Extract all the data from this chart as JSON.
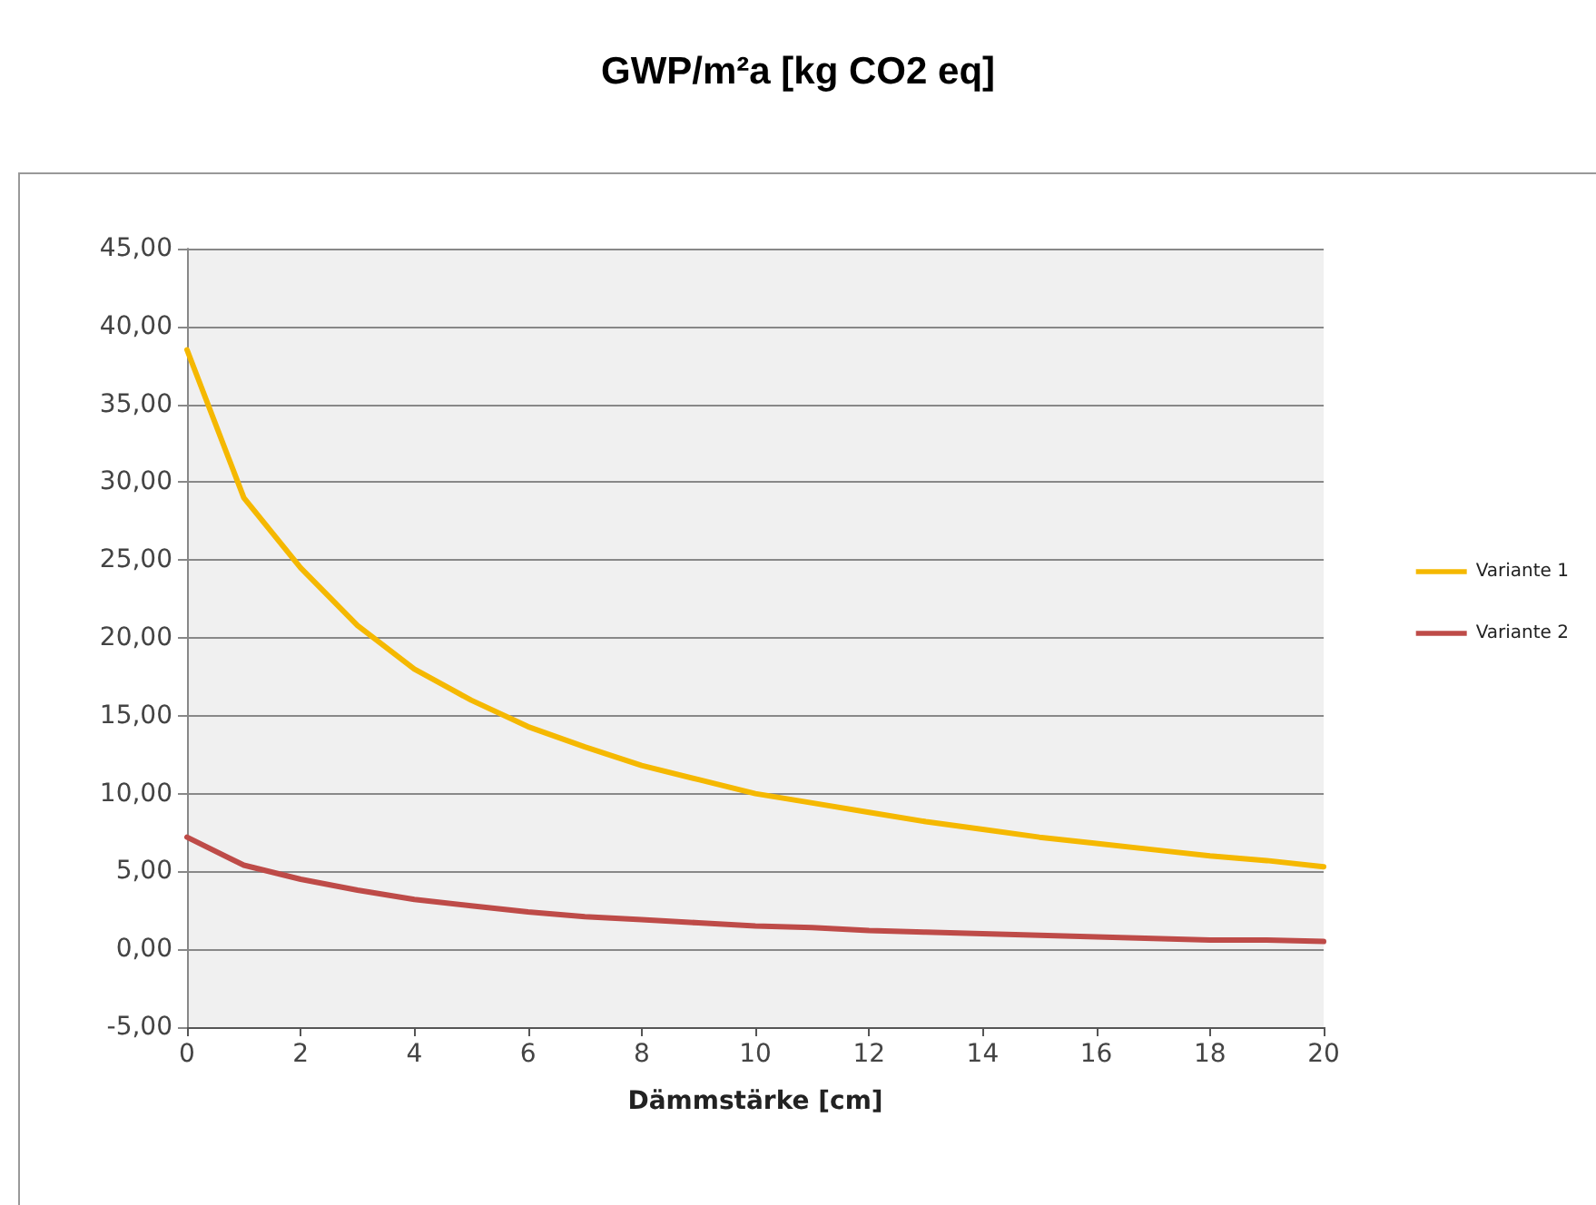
{
  "chart_data": {
    "type": "line",
    "title": "GWP/m²a [kg CO2 eq]",
    "xlabel": "Dämmstärke [cm]",
    "x": [
      0,
      1,
      2,
      3,
      4,
      5,
      6,
      7,
      8,
      9,
      10,
      11,
      12,
      13,
      14,
      15,
      16,
      17,
      18,
      19,
      20
    ],
    "series": [
      {
        "name": "Variante 1",
        "color": "#f5b800",
        "values": [
          38.5,
          29,
          24.5,
          20.8,
          18,
          16,
          14.3,
          13,
          11.8,
          10.9,
          10,
          9.4,
          8.8,
          8.2,
          7.7,
          7.2,
          6.8,
          6.4,
          6,
          5.7,
          5.3
        ]
      },
      {
        "name": "Variante 2",
        "color": "#be4b48",
        "values": [
          7.2,
          5.4,
          4.5,
          3.8,
          3.2,
          2.8,
          2.4,
          2.1,
          1.9,
          1.7,
          1.5,
          1.4,
          1.2,
          1.1,
          1,
          0.9,
          0.8,
          0.7,
          0.6,
          0.6,
          0.5
        ]
      }
    ],
    "xlim": [
      0,
      20
    ],
    "xticks": [
      0,
      2,
      4,
      6,
      8,
      10,
      12,
      14,
      16,
      18,
      20
    ],
    "ylim": [
      -5,
      45
    ],
    "yticks": [
      {
        "value": -5,
        "label": "-5,00"
      },
      {
        "value": 0,
        "label": "0,00"
      },
      {
        "value": 5,
        "label": "5,00"
      },
      {
        "value": 10,
        "label": "10,00"
      },
      {
        "value": 15,
        "label": "15,00"
      },
      {
        "value": 20,
        "label": "20,00"
      },
      {
        "value": 25,
        "label": "25,00"
      },
      {
        "value": 30,
        "label": "30,00"
      },
      {
        "value": 35,
        "label": "35,00"
      },
      {
        "value": 40,
        "label": "40,00"
      },
      {
        "value": 45,
        "label": "45,00"
      }
    ],
    "grid": "y",
    "legend": "right",
    "marker": "none",
    "line_style": "solid"
  }
}
